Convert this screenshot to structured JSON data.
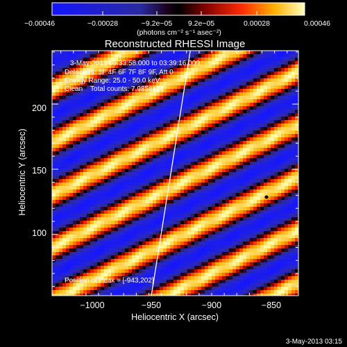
{
  "colorbar": {
    "tick_labels": [
      "−0.00046",
      "−0.00028",
      "−9.2e−05",
      "9.2e−05",
      "0.00028",
      "0.00046"
    ],
    "units": "(photons cm⁻² s⁻¹ asec⁻²)",
    "range": [
      -0.00046,
      0.00046
    ]
  },
  "chart_data": {
    "type": "heatmap",
    "title": "Reconstructed RHESSI Image",
    "xlabel": "Heliocentric X (arcsec)",
    "ylabel": "Heliocentric Y (arcsec)",
    "xlim": [
      -1032,
      -836
    ],
    "ylim": [
      53,
      241
    ],
    "x_tick_labels": [
      "−1000",
      "−950",
      "−900",
      "−850"
    ],
    "y_tick_labels": [
      "100",
      "150",
      "200"
    ],
    "annotations": [
      "3-May-2013 03:33:58.000 to 03:39:16.000",
      "Detectors: 3F 4F 6F 7F 8F 9F, Att 0",
      "Energy Range: 25.0 - 50.0 keV",
      "Clean    Total counts: 7.985e+04"
    ],
    "peak_label": "Position of Peak = [-943,202]",
    "peak": [
      -943,
      202
    ],
    "limb_line": [
      [
        -953,
        53
      ],
      [
        -922,
        241
      ]
    ],
    "timestamp": "3-May-2013 03:15",
    "colors": {
      "axis": "#ffffff",
      "background": "#000000"
    }
  }
}
